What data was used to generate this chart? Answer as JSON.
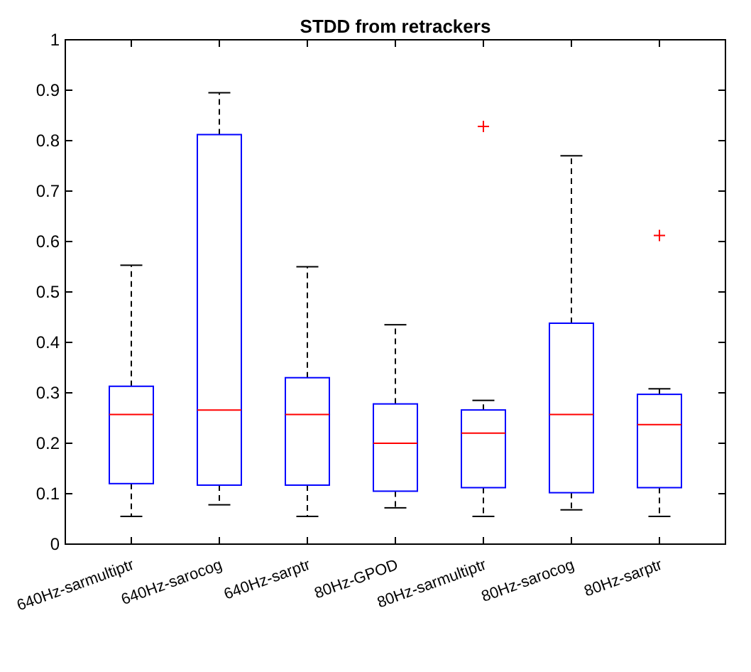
{
  "chart_data": {
    "type": "box",
    "title": "STDD from retrackers",
    "categories": [
      "640Hz-sarmultiptr",
      "640Hz-sarocog",
      "640Hz-sarptr",
      "80Hz-GPOD",
      "80Hz-sarmultiptr",
      "80Hz-sarocog",
      "80Hz-sarptr"
    ],
    "boxes": [
      {
        "low": 0.055,
        "q1": 0.12,
        "median": 0.257,
        "q3": 0.313,
        "high": 0.553
      },
      {
        "low": 0.078,
        "q1": 0.117,
        "median": 0.266,
        "q3": 0.812,
        "high": 0.895
      },
      {
        "low": 0.055,
        "q1": 0.117,
        "median": 0.257,
        "q3": 0.33,
        "high": 0.55
      },
      {
        "low": 0.072,
        "q1": 0.105,
        "median": 0.2,
        "q3": 0.278,
        "high": 0.435
      },
      {
        "low": 0.055,
        "q1": 0.112,
        "median": 0.22,
        "q3": 0.266,
        "high": 0.285,
        "outliers": [
          0.828
        ]
      },
      {
        "low": 0.068,
        "q1": 0.102,
        "median": 0.257,
        "q3": 0.438,
        "high": 0.77
      },
      {
        "low": 0.055,
        "q1": 0.112,
        "median": 0.237,
        "q3": 0.297,
        "high": 0.308,
        "outliers": [
          0.612
        ]
      }
    ],
    "color": "#0000ff",
    "ylim": [
      0,
      1
    ],
    "yticks": [
      0,
      0.1,
      0.2,
      0.3,
      0.4,
      0.5,
      0.6,
      0.7,
      0.8,
      0.9,
      1
    ],
    "grid": false
  }
}
